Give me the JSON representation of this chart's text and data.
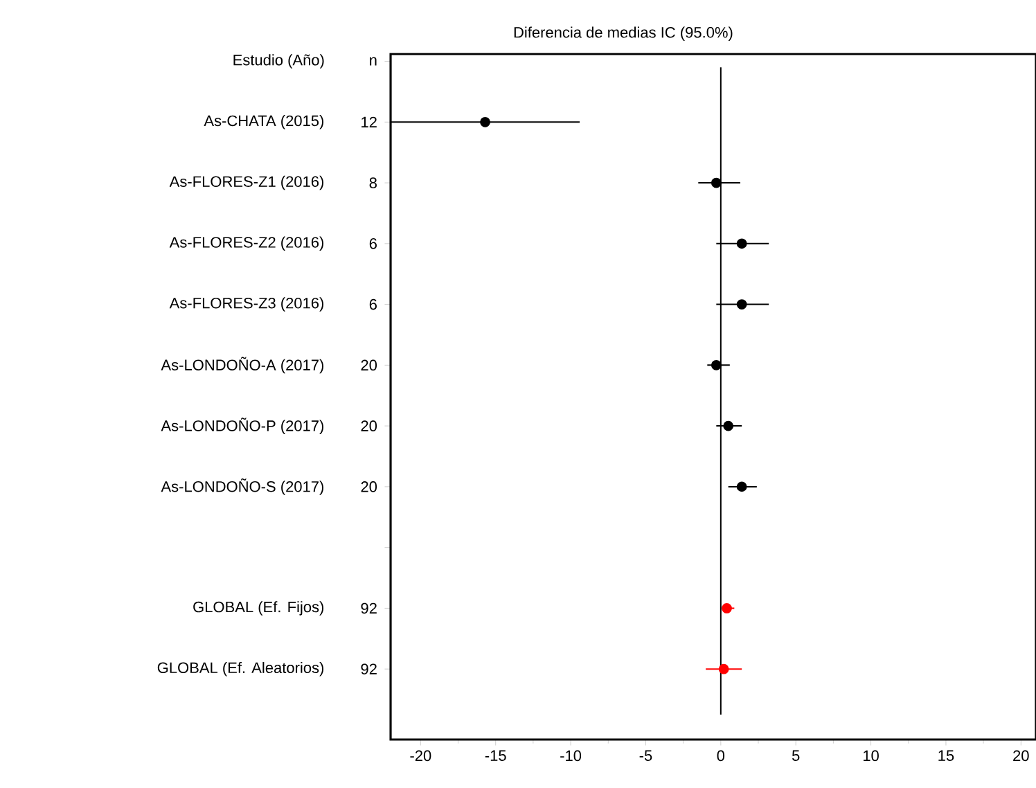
{
  "chart_data": {
    "type": "scatter",
    "orientation": "horizontal",
    "title": "Diferencia de medias IC (95.0%)",
    "categories": [
      "As-CHATA (2015)",
      "As-FLORES-Z1 (2016)",
      "As-FLORES-Z2 (2016)",
      "As-FLORES-Z3 (2016)",
      "As-LONDOÑO-A (2017)",
      "As-LONDOÑO-P (2017)",
      "As-LONDOÑO-S (2017)",
      null,
      "GLOBAL (Ef. Fijos)",
      "GLOBAL (Ef. Aleatorios)"
    ],
    "series": [
      {
        "color": "#000000",
        "values": [
          -15.7,
          -0.3,
          1.4,
          1.4,
          -0.3,
          0.5,
          1.4,
          null,
          null,
          null
        ],
        "errors": [
          [
            -22,
            -9.4
          ],
          [
            -1.5,
            1.3
          ],
          [
            -0.3,
            3.2
          ],
          [
            -0.3,
            3.2
          ],
          [
            -0.9,
            0.6
          ],
          [
            -0.3,
            1.4
          ],
          [
            0.5,
            2.4
          ],
          null,
          null,
          null
        ]
      },
      {
        "color": "#ff0000",
        "values": [
          null,
          null,
          null,
          null,
          null,
          null,
          null,
          null,
          0.4,
          0.2
        ],
        "errors": [
          null,
          null,
          null,
          null,
          null,
          null,
          null,
          null,
          [
            0.2,
            0.9
          ],
          [
            -1.0,
            1.4
          ]
        ]
      }
    ],
    "annotations": [
      "Estudio  (Año)",
      "n",
      "12",
      "8",
      "6",
      "6",
      "20",
      "20",
      "20",
      "92",
      "92"
    ],
    "xlim": [
      -22,
      21
    ],
    "xticks": [
      -20,
      -15,
      -10,
      -5,
      0,
      5,
      10,
      15,
      20
    ],
    "ref_lines": [
      {
        "axis": "x",
        "value": 0
      }
    ],
    "marker": "circle",
    "grid": false
  }
}
